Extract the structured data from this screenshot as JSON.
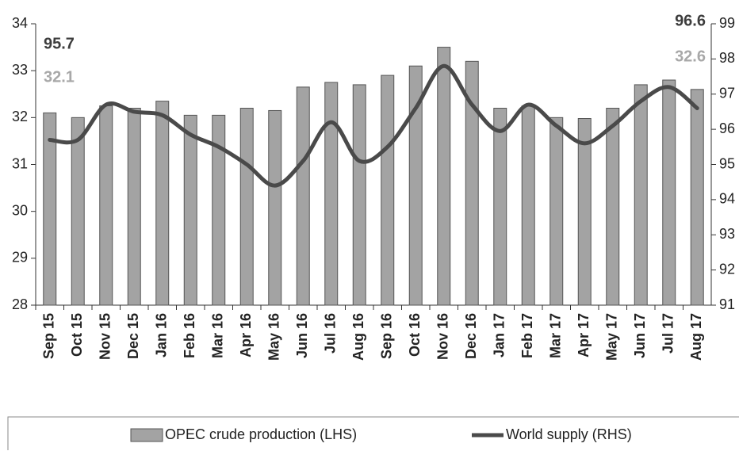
{
  "chart_data": {
    "type": "combo",
    "categories": [
      "Sep 15",
      "Oct 15",
      "Nov 15",
      "Dec 15",
      "Jan 16",
      "Feb 16",
      "Mar 16",
      "Apr 16",
      "May 16",
      "Jun 16",
      "Jul 16",
      "Aug 16",
      "Sep 16",
      "Oct 16",
      "Nov 16",
      "Dec 16",
      "Jan 17",
      "Feb 17",
      "Mar 17",
      "Apr 17",
      "May 17",
      "Jun 17",
      "Jul 17",
      "Aug 17"
    ],
    "series": [
      {
        "name": "OPEC crude production (LHS)",
        "type": "bar",
        "axis": "y",
        "color": "#a3a3a3",
        "values": [
          32.1,
          32.0,
          32.25,
          32.2,
          32.35,
          32.05,
          32.05,
          32.2,
          32.15,
          32.65,
          32.75,
          32.7,
          32.9,
          33.1,
          33.5,
          33.2,
          32.2,
          32.25,
          32.0,
          31.98,
          32.2,
          32.7,
          32.8,
          32.6
        ]
      },
      {
        "name": "World supply (RHS)",
        "type": "line",
        "axis": "y2",
        "color": "#4a4a4a",
        "values": [
          95.7,
          95.7,
          96.7,
          96.5,
          96.4,
          95.85,
          95.5,
          95.0,
          94.4,
          95.1,
          96.2,
          95.1,
          95.5,
          96.6,
          97.8,
          96.7,
          95.95,
          96.7,
          96.1,
          95.6,
          96.1,
          96.8,
          97.2,
          96.6
        ]
      }
    ],
    "annotations": [
      "95.7",
      "32.1",
      "96.6",
      "32.6"
    ],
    "ylim": [
      28,
      34
    ],
    "yticks": [
      28,
      29,
      30,
      31,
      32,
      33,
      34
    ],
    "y2lim": [
      91,
      99
    ],
    "y2ticks": [
      91,
      92,
      93,
      94,
      95,
      96,
      97,
      98,
      99
    ]
  }
}
